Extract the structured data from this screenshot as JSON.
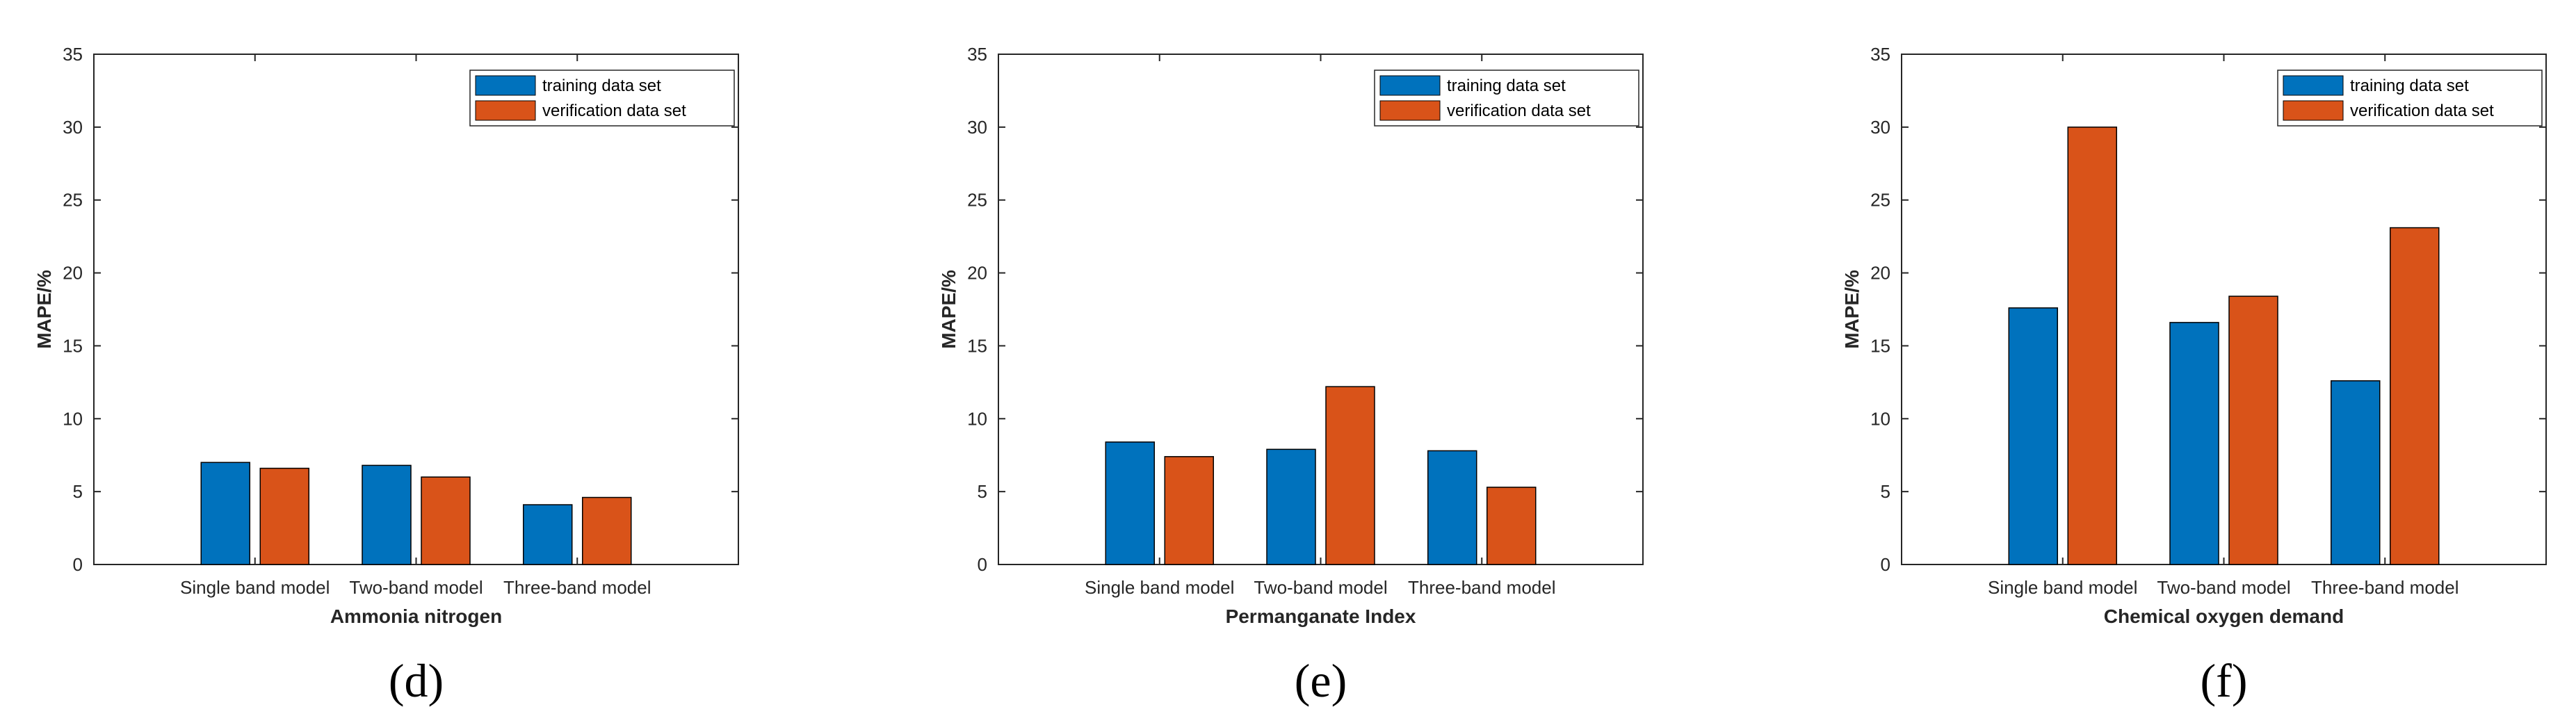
{
  "colors": {
    "training": "#0072BD",
    "verification": "#D95319",
    "axis": "#262626",
    "bar_edge": "#000000"
  },
  "chart_data": [
    {
      "type": "bar",
      "panel": "(d)",
      "title": "",
      "categories": [
        "Single band model",
        "Two-band model",
        "Three-band model"
      ],
      "series": [
        {
          "name": "training data set",
          "values": [
            7.0,
            6.8,
            4.1
          ]
        },
        {
          "name": "verification data set",
          "values": [
            6.6,
            6.0,
            4.6
          ]
        }
      ],
      "xlabel": "Ammonia nitrogen",
      "ylabel": "MAPE/%",
      "ylim": [
        0,
        35
      ],
      "yticks": [
        "0",
        "5",
        "10",
        "15",
        "20",
        "25",
        "30",
        "35"
      ],
      "legend": "top-right",
      "grid": false
    },
    {
      "type": "bar",
      "panel": "(e)",
      "title": "",
      "categories": [
        "Single band model",
        "Two-band model",
        "Three-band model"
      ],
      "series": [
        {
          "name": "training data set",
          "values": [
            8.4,
            7.9,
            7.8
          ]
        },
        {
          "name": "verification data set",
          "values": [
            7.4,
            12.2,
            5.3
          ]
        }
      ],
      "xlabel": "Permanganate Index",
      "ylabel": "MAPE/%",
      "ylim": [
        0,
        35
      ],
      "yticks": [
        "0",
        "5",
        "10",
        "15",
        "20",
        "25",
        "30",
        "35"
      ],
      "legend": "top-right",
      "grid": false
    },
    {
      "type": "bar",
      "panel": "(f)",
      "title": "",
      "categories": [
        "Single band model",
        "Two-band model",
        "Three-band model"
      ],
      "series": [
        {
          "name": "training data set",
          "values": [
            17.6,
            16.6,
            12.6
          ]
        },
        {
          "name": "verification data set",
          "values": [
            30.0,
            18.4,
            23.1
          ]
        }
      ],
      "xlabel": "Chemical oxygen demand",
      "ylabel": "MAPE/%",
      "ylim": [
        0,
        35
      ],
      "yticks": [
        "0",
        "5",
        "10",
        "15",
        "20",
        "25",
        "30",
        "35"
      ],
      "legend": "top-right",
      "grid": false
    }
  ]
}
